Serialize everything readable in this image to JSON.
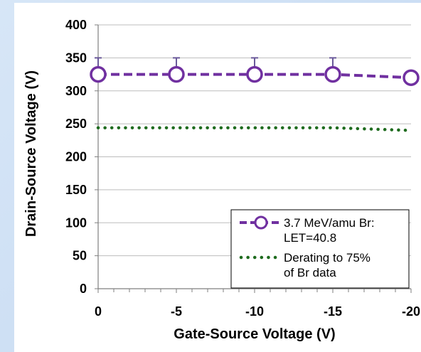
{
  "chart_data": {
    "type": "line",
    "x": [
      0,
      -5,
      -10,
      -15,
      -20
    ],
    "x_ticks": [
      "0",
      "-5",
      "-10",
      "-15",
      "-20"
    ],
    "y_ticks": [
      "0",
      "50",
      "100",
      "150",
      "200",
      "250",
      "300",
      "350",
      "400"
    ],
    "xlabel": "Gate-Source Voltage (V)",
    "ylabel": "Drain-Source Voltage (V)",
    "xlim": [
      0,
      -20
    ],
    "ylim": [
      0,
      400
    ],
    "grid": "horizontal",
    "legend_position": "bottom-right",
    "series": [
      {
        "name": "3.7 MeV/amu Br:",
        "name_line2": "LET=40.8",
        "values": [
          325,
          325,
          325,
          325,
          320
        ],
        "error_upper": [
          350,
          350,
          350,
          350,
          null
        ],
        "color": "#7030a0",
        "style": "dashed-circle-markers"
      },
      {
        "name": "Derating to 75%",
        "name_line2": "of Br data",
        "values": [
          244,
          244,
          244,
          244,
          240
        ],
        "color": "#1e6b1e",
        "style": "dotted"
      }
    ]
  }
}
